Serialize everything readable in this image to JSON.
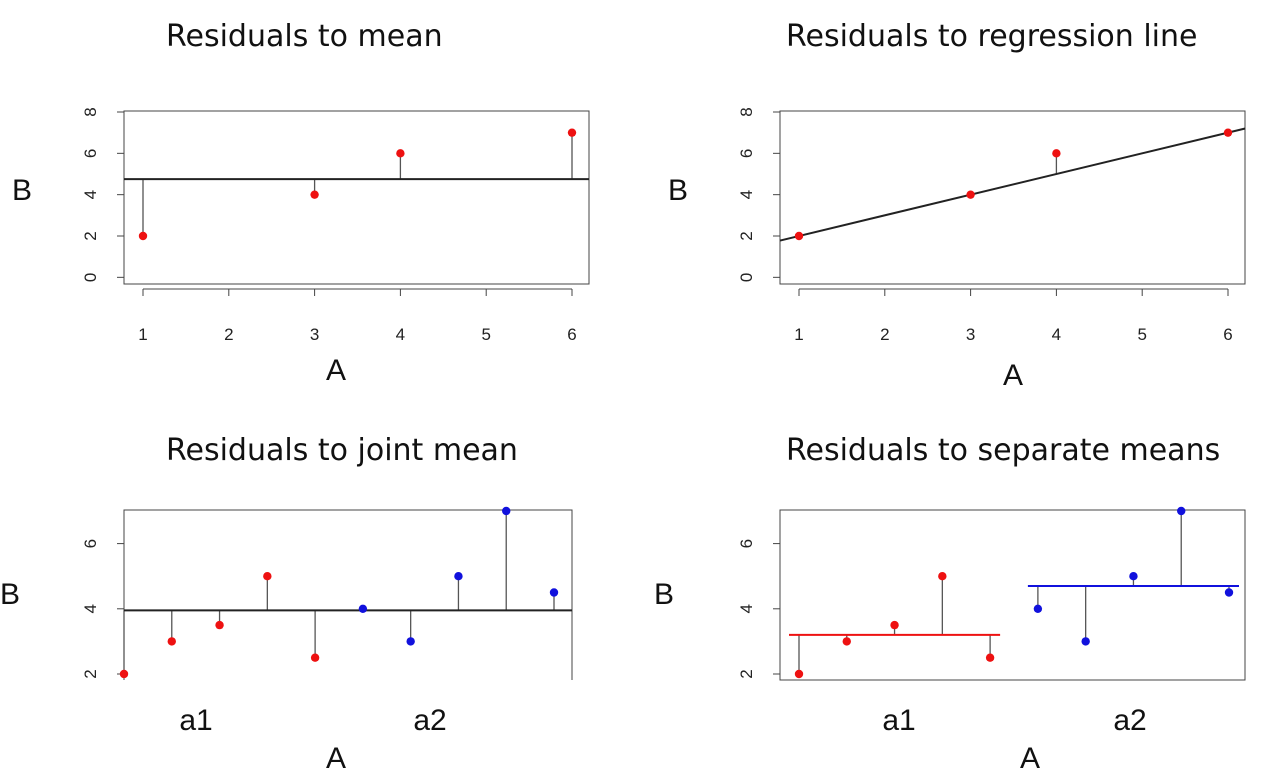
{
  "chart_data": [
    {
      "type": "scatter",
      "title": "Residuals to mean",
      "xlabel": "A",
      "ylabel": "B",
      "x_ticks": [
        "1",
        "2",
        "3",
        "4",
        "5",
        "6"
      ],
      "y_ticks": [
        "0",
        "2",
        "4",
        "6",
        "8"
      ],
      "xlim": [
        0.8,
        6.2
      ],
      "ylim": [
        -0.2,
        8.2
      ],
      "points": [
        {
          "x": 1,
          "y": 2,
          "color": "red"
        },
        {
          "x": 3,
          "y": 4,
          "color": "red"
        },
        {
          "x": 4,
          "y": 6,
          "color": "red"
        },
        {
          "x": 6,
          "y": 7,
          "color": "red"
        }
      ],
      "fit": {
        "kind": "horizontal",
        "y": 4.75,
        "color": "#222222"
      }
    },
    {
      "type": "scatter",
      "title": "Residuals to regression line",
      "xlabel": "A",
      "ylabel": "B",
      "x_ticks": [
        "1",
        "2",
        "3",
        "4",
        "5",
        "6"
      ],
      "y_ticks": [
        "0",
        "2",
        "4",
        "6",
        "8"
      ],
      "xlim": [
        0.8,
        6.2
      ],
      "ylim": [
        -0.2,
        8.2
      ],
      "points": [
        {
          "x": 1,
          "y": 2,
          "color": "red"
        },
        {
          "x": 3,
          "y": 4,
          "color": "red"
        },
        {
          "x": 4,
          "y": 6,
          "color": "red"
        },
        {
          "x": 6,
          "y": 7,
          "color": "red"
        }
      ],
      "fit": {
        "kind": "linear",
        "intercept": 1.0,
        "slope": 1.0,
        "color": "#222222"
      }
    },
    {
      "type": "scatter",
      "title": "Residuals to joint mean",
      "xlabel": "A",
      "ylabel": "B",
      "categories": [
        "a1",
        "a2"
      ],
      "y_ticks": [
        "2",
        "4",
        "6"
      ],
      "xlim": [
        0.6,
        10.2
      ],
      "ylim": [
        2,
        7
      ],
      "points": [
        {
          "x": 1,
          "y": 2,
          "color": "red"
        },
        {
          "x": 2,
          "y": 3,
          "color": "red"
        },
        {
          "x": 3,
          "y": 3.5,
          "color": "red"
        },
        {
          "x": 4,
          "y": 5,
          "color": "red"
        },
        {
          "x": 5,
          "y": 2.5,
          "color": "red"
        },
        {
          "x": 6,
          "y": 4,
          "color": "blue"
        },
        {
          "x": 7,
          "y": 3,
          "color": "blue"
        },
        {
          "x": 8,
          "y": 5,
          "color": "blue"
        },
        {
          "x": 9,
          "y": 7,
          "color": "blue"
        },
        {
          "x": 10,
          "y": 4.5,
          "color": "blue"
        }
      ],
      "fit": {
        "kind": "horizontal",
        "y": 3.95,
        "color": "#222222"
      }
    },
    {
      "type": "scatter",
      "title": "Residuals to separate means",
      "xlabel": "A",
      "ylabel": "B",
      "categories": [
        "a1",
        "a2"
      ],
      "y_ticks": [
        "2",
        "4",
        "6"
      ],
      "xlim": [
        0.6,
        10.5
      ],
      "ylim": [
        2,
        7
      ],
      "points": [
        {
          "x": 1,
          "y": 2,
          "color": "red"
        },
        {
          "x": 2,
          "y": 3,
          "color": "red"
        },
        {
          "x": 3,
          "y": 3.5,
          "color": "red"
        },
        {
          "x": 4,
          "y": 5,
          "color": "red"
        },
        {
          "x": 5,
          "y": 2.5,
          "color": "red"
        },
        {
          "x": 6,
          "y": 4,
          "color": "blue"
        },
        {
          "x": 7,
          "y": 3,
          "color": "blue"
        },
        {
          "x": 8,
          "y": 5,
          "color": "blue"
        },
        {
          "x": 9,
          "y": 7,
          "color": "blue"
        },
        {
          "x": 10,
          "y": 4.5,
          "color": "blue"
        }
      ],
      "fit": {
        "kind": "group-means",
        "groups": [
          {
            "from_x": 1,
            "to_x": 5,
            "y": 3.2,
            "color": "red"
          },
          {
            "from_x": 6,
            "to_x": 10,
            "y": 4.7,
            "color": "blue"
          }
        ]
      }
    }
  ]
}
